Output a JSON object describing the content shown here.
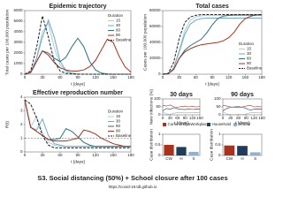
{
  "chart_data": [
    {
      "type": "line",
      "title": "Epidemic trajectory",
      "xlabel": "t [days]",
      "ylabel": "Total cases per 100,000 population",
      "x": [
        0,
        10,
        20,
        30,
        40,
        50,
        60,
        70,
        80,
        90,
        100,
        110,
        120,
        130,
        140,
        150,
        160,
        170,
        180
      ],
      "xlim": [
        0,
        180
      ],
      "xticks": [
        0,
        30,
        60,
        90,
        120,
        150,
        180
      ],
      "ylim": [
        0,
        6000
      ],
      "yticks": [
        0,
        1000,
        2000,
        3000,
        4000,
        5000,
        6000
      ],
      "legend": "upper right",
      "legend_title": "Duration",
      "series": [
        {
          "name": "15",
          "color": "#a6cfe0",
          "values": [
            0,
            150,
            1500,
            4000,
            4800,
            2500,
            900,
            250,
            60,
            15,
            0,
            0,
            0,
            0,
            0,
            0,
            0,
            0,
            0
          ]
        },
        {
          "name": "30",
          "color": "#6fa8bf",
          "values": [
            0,
            150,
            1500,
            3500,
            5100,
            3500,
            1200,
            350,
            100,
            20,
            5,
            0,
            0,
            0,
            0,
            0,
            0,
            0,
            0
          ]
        },
        {
          "name": "60",
          "color": "#2f6f7f",
          "values": [
            0,
            150,
            1200,
            2200,
            2000,
            1500,
            1200,
            1600,
            2600,
            3400,
            2600,
            1200,
            400,
            100,
            20,
            0,
            0,
            0,
            0
          ]
        },
        {
          "name": "90",
          "color": "#a8321e",
          "values": [
            0,
            150,
            1200,
            2200,
            1800,
            1100,
            600,
            400,
            300,
            300,
            400,
            700,
            1300,
            2300,
            3300,
            3000,
            1700,
            700,
            200
          ]
        },
        {
          "name": "Baseline",
          "color": "#222222",
          "style": "dashed",
          "values": [
            0,
            300,
            2500,
            5500,
            3500,
            1200,
            300,
            80,
            20,
            5,
            0,
            0,
            0,
            0,
            0,
            0,
            0,
            0,
            0
          ]
        }
      ]
    },
    {
      "type": "line",
      "title": "Total cases",
      "xlabel": "t [days]",
      "ylabel": "Cases per 100,000 population",
      "x": [
        0,
        10,
        20,
        30,
        40,
        50,
        60,
        70,
        80,
        90,
        100,
        110,
        120,
        130,
        140,
        150,
        160,
        170,
        180
      ],
      "xlim": [
        0,
        180
      ],
      "xticks": [
        0,
        30,
        60,
        90,
        120,
        150,
        180
      ],
      "ylim": [
        0,
        80000
      ],
      "yticks": [
        0,
        20000,
        40000,
        60000,
        80000
      ],
      "legend": "lower right",
      "legend_title": "Duration",
      "series": [
        {
          "name": "15",
          "color": "#a6cfe0",
          "values": [
            0,
            500,
            8000,
            30000,
            55000,
            68000,
            72000,
            73500,
            74000,
            74000,
            74000,
            74000,
            74000,
            74000,
            74000,
            74000,
            74000,
            74000,
            74000
          ]
        },
        {
          "name": "30",
          "color": "#6fa8bf",
          "values": [
            0,
            500,
            8000,
            28000,
            50000,
            63000,
            68000,
            70000,
            70500,
            70500,
            70500,
            70500,
            70500,
            70500,
            70500,
            70500,
            70500,
            70500,
            70500
          ]
        },
        {
          "name": "60",
          "color": "#2f6f7f",
          "values": [
            0,
            500,
            6000,
            20000,
            30000,
            36000,
            40000,
            44000,
            52000,
            62000,
            70000,
            73000,
            74000,
            74500,
            74500,
            74500,
            74500,
            74500,
            74500
          ]
        },
        {
          "name": "90",
          "color": "#a8321e",
          "values": [
            0,
            500,
            6000,
            20000,
            28000,
            32000,
            35000,
            37000,
            38000,
            39000,
            40000,
            42000,
            46000,
            53000,
            63000,
            70000,
            73000,
            74500,
            75000
          ]
        },
        {
          "name": "Baseline",
          "color": "#222222",
          "style": "dashed",
          "values": [
            0,
            1000,
            15000,
            45000,
            65000,
            72000,
            74000,
            75000,
            75000,
            75000,
            75000,
            75000,
            75000,
            75000,
            75000,
            75000,
            75000,
            75000,
            75000
          ]
        }
      ]
    },
    {
      "type": "line",
      "title": "Effective reproduction number",
      "xlabel": "t [days]",
      "ylabel": "R(t)",
      "hline": 1,
      "x": [
        0,
        10,
        20,
        30,
        40,
        50,
        60,
        70,
        80,
        90,
        100,
        110,
        120,
        130,
        140,
        150,
        160,
        170,
        180
      ],
      "xlim": [
        0,
        180
      ],
      "xticks": [
        0,
        30,
        60,
        90,
        120,
        150,
        180
      ],
      "ylim": [
        0,
        4
      ],
      "yticks": [
        0,
        1,
        2,
        3,
        4
      ],
      "legend": "center right",
      "legend_title": "Duration",
      "series": [
        {
          "name": "15",
          "color": "#a6cfe0",
          "values": [
            3.8,
            1.8,
            2.6,
            1.4,
            0.7,
            0.5,
            0.4,
            0.4,
            0.4,
            0.4,
            0.4,
            0.4,
            0.4,
            0.4,
            0.4,
            0.4,
            0.4,
            0.4,
            0.4
          ]
        },
        {
          "name": "30",
          "color": "#6fa8bf",
          "values": [
            3.8,
            1.8,
            1.6,
            2.4,
            1.2,
            0.6,
            0.5,
            0.4,
            0.4,
            0.4,
            0.4,
            0.4,
            0.4,
            0.4,
            0.4,
            0.4,
            0.4,
            0.4,
            0.4
          ]
        },
        {
          "name": "60",
          "color": "#2f6f7f",
          "values": [
            3.8,
            1.8,
            1.5,
            1.2,
            0.9,
            0.9,
            1.0,
            1.7,
            1.5,
            1.1,
            0.7,
            0.5,
            0.4,
            0.4,
            0.4,
            0.4,
            0.4,
            0.4,
            0.4
          ]
        },
        {
          "name": "90",
          "color": "#a8321e",
          "values": [
            3.8,
            1.8,
            1.5,
            1.2,
            0.9,
            0.8,
            0.8,
            0.8,
            0.9,
            1.0,
            1.6,
            1.5,
            1.3,
            1.0,
            0.8,
            0.6,
            0.5,
            0.4,
            0.4
          ]
        },
        {
          "name": "Baseline",
          "color": "#222222",
          "style": "dashed",
          "values": [
            3.8,
            3.5,
            2.5,
            1.2,
            0.5,
            0.3,
            0.3,
            0.3,
            0.3,
            0.3,
            0.3,
            0.3,
            0.3,
            0.3,
            0.3,
            0.3,
            0.3,
            0.3,
            0.3
          ]
        }
      ]
    },
    {
      "type": "line",
      "title": "30 days",
      "xlabel": "t [days]",
      "ylabel": "New infections (%)",
      "x": [
        0,
        15,
        30,
        45,
        60,
        75,
        90,
        105,
        120,
        135,
        150
      ],
      "xlim": [
        0,
        150
      ],
      "xticks": [
        0,
        30,
        60,
        90,
        120,
        150
      ],
      "ylim": [
        0,
        100
      ],
      "yticks": [
        0,
        50,
        100
      ],
      "legend": "below",
      "series": [
        {
          "name": "Community&Workplace",
          "color": "#a8321e",
          "values": [
            60,
            55,
            62,
            50,
            48,
            52,
            55,
            50,
            53,
            50,
            52
          ]
        },
        {
          "name": "Household",
          "color": "#1f3c5a",
          "values": [
            25,
            40,
            35,
            45,
            38,
            35,
            33,
            37,
            34,
            36,
            35
          ]
        },
        {
          "name": "School",
          "color": "#8fb3cf",
          "values": [
            20,
            5,
            3,
            10,
            14,
            13,
            12,
            13,
            13,
            14,
            13
          ]
        }
      ]
    },
    {
      "type": "line",
      "title": "90 days",
      "xlabel": "t [days]",
      "x": [
        0,
        15,
        30,
        45,
        60,
        75,
        90,
        105,
        120,
        135,
        150
      ],
      "xlim": [
        0,
        150
      ],
      "xticks": [
        0,
        30,
        60,
        90,
        120,
        150
      ],
      "ylim": [
        0,
        100
      ],
      "yticks": [
        0,
        50,
        100
      ],
      "series": [
        {
          "name": "Community&Workplace",
          "color": "#a8321e",
          "values": [
            60,
            55,
            50,
            48,
            45,
            50,
            55,
            60,
            50,
            52,
            50
          ]
        },
        {
          "name": "Household",
          "color": "#1f3c5a",
          "values": [
            25,
            40,
            48,
            50,
            52,
            48,
            40,
            30,
            35,
            36,
            35
          ]
        },
        {
          "name": "School",
          "color": "#8fb3cf",
          "values": [
            20,
            5,
            2,
            2,
            3,
            2,
            5,
            12,
            14,
            12,
            13
          ]
        }
      ]
    },
    {
      "type": "bar",
      "ylabel": "Case distribution",
      "categories": [
        "CW",
        "H",
        "S"
      ],
      "values": [
        0.5,
        0.4,
        0.17
      ],
      "colors": [
        "#a8321e",
        "#1f3c5a",
        "#8fb3cf"
      ],
      "ylim": [
        0,
        1
      ],
      "yticks": [
        0,
        0.5,
        1
      ]
    },
    {
      "type": "bar",
      "ylabel": "Case distribution",
      "categories": [
        "CW",
        "H",
        "S"
      ],
      "values": [
        0.47,
        0.45,
        0.15
      ],
      "colors": [
        "#a8321e",
        "#1f3c5a",
        "#8fb3cf"
      ],
      "ylim": [
        0,
        1
      ],
      "yticks": [
        0,
        0.5,
        1
      ]
    }
  ],
  "footer": {
    "title": "S3. Social distancing (50%) + School closure after 100 cases",
    "url": "https://covid-19.tdl.github.io"
  }
}
